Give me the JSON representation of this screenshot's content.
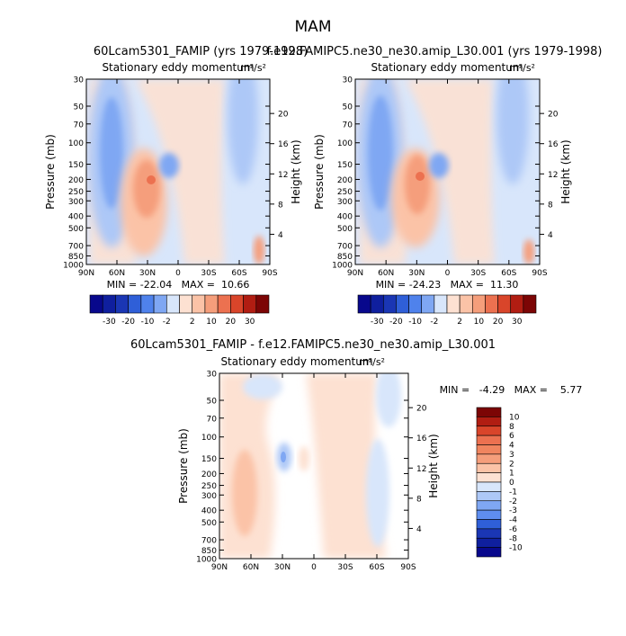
{
  "page": {
    "season": "MAM"
  },
  "colors": {
    "scale": [
      "#08088c",
      "#1a36b4",
      "#2f5fd8",
      "#4f82ec",
      "#7fa7f3",
      "#adc8f7",
      "#d8e6fb",
      "#ffffff",
      "#fde1d2",
      "#fbc3a7",
      "#f59e7b",
      "#ec7150",
      "#d9452a",
      "#b11d12",
      "#7c0505"
    ]
  },
  "chart_data": [
    {
      "id": "panel-1",
      "type": "heatmap",
      "title": "60Lcam5301_FAMIP (yrs 1979-1998)",
      "subtitle": "Stationary eddy momentum",
      "units": "m²/s²",
      "ylabel": "Pressure (mb)",
      "y2label": "Height (km)",
      "x_ticks": [
        "90N",
        "60N",
        "30N",
        "0",
        "30S",
        "60S",
        "90S"
      ],
      "y_ticks": [
        "30",
        "50",
        "70",
        "100",
        "150",
        "200",
        "250",
        "300",
        "400",
        "500",
        "700",
        "850",
        "1000"
      ],
      "y2_ticks": [
        "20",
        "16",
        "12",
        "8",
        "4"
      ],
      "ylim": [
        1000,
        30
      ],
      "stats": "MIN = -22.04   MAX =  10.66",
      "levels": [
        "-30",
        "-20",
        "-10",
        "-2",
        "2",
        "10",
        "20",
        "30"
      ]
    },
    {
      "id": "panel-2",
      "type": "heatmap",
      "title": "f.e12.FAMIPC5.ne30_ne30.amip_L30.001 (yrs 1979-1998)",
      "subtitle": "Stationary eddy momentum",
      "units": "m²/s²",
      "ylabel": "Pressure (mb)",
      "y2label": "Height (km)",
      "x_ticks": [
        "90N",
        "60N",
        "30N",
        "0",
        "30S",
        "60S",
        "90S"
      ],
      "y_ticks": [
        "30",
        "50",
        "70",
        "100",
        "150",
        "200",
        "250",
        "300",
        "400",
        "500",
        "700",
        "850",
        "1000"
      ],
      "y2_ticks": [
        "20",
        "16",
        "12",
        "8",
        "4"
      ],
      "ylim": [
        1000,
        30
      ],
      "stats": "MIN = -24.23   MAX =  11.30",
      "levels": [
        "-30",
        "-20",
        "-10",
        "-2",
        "2",
        "10",
        "20",
        "30"
      ]
    },
    {
      "id": "panel-diff",
      "type": "heatmap",
      "title": "60Lcam5301_FAMIP - f.e12.FAMIPC5.ne30_ne30.amip_L30.001",
      "subtitle": "Stationary eddy momentum",
      "units": "m²/s²",
      "ylabel": "Pressure (mb)",
      "y2label": "Height (km)",
      "x_ticks": [
        "90N",
        "60N",
        "30N",
        "0",
        "30S",
        "60S",
        "90S"
      ],
      "y_ticks": [
        "30",
        "50",
        "70",
        "100",
        "150",
        "200",
        "250",
        "300",
        "400",
        "500",
        "700",
        "850",
        "1000"
      ],
      "y2_ticks": [
        "20",
        "16",
        "12",
        "8",
        "4"
      ],
      "ylim": [
        1000,
        30
      ],
      "stats": "MIN =   -4.29   MAX =    5.77",
      "levels": [
        "10",
        "8",
        "6",
        "4",
        "3",
        "2",
        "1",
        "0",
        "-1",
        "-2",
        "-3",
        "-4",
        "-6",
        "-8",
        "-10"
      ]
    }
  ]
}
